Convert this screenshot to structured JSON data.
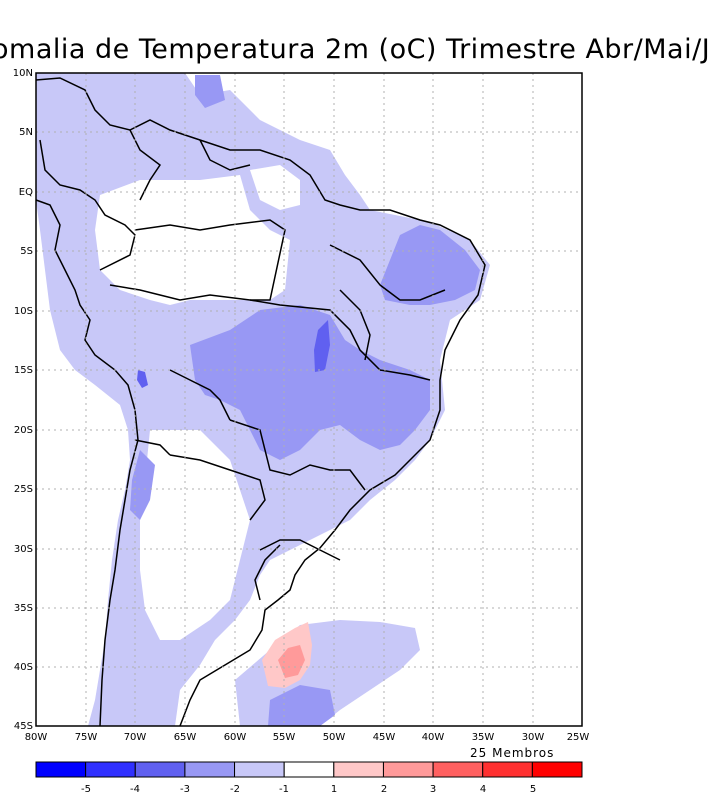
{
  "title": "omalia de Temperatura 2m (oC) Trimestre Abr/Mai/J",
  "members": "25 Membros",
  "lat_labels": [
    "10N",
    "5N",
    "EQ",
    "5S",
    "10S",
    "15S",
    "20S",
    "25S",
    "30S",
    "35S",
    "40S",
    "45S"
  ],
  "lon_labels": [
    "80W",
    "75W",
    "70W",
    "65W",
    "60W",
    "55W",
    "50W",
    "45W",
    "40W",
    "35W",
    "30W",
    "25W"
  ],
  "colorbar": {
    "labels": [
      "-5",
      "-4",
      "-3",
      "-2",
      "-1",
      "1",
      "2",
      "3",
      "4",
      "5"
    ],
    "colors": [
      "#0000ff",
      "#3030ff",
      "#6060f0",
      "#9898f4",
      "#c8c8f8",
      "#ffffff",
      "#ffc8c8",
      "#ff9a9a",
      "#ff6060",
      "#ff3030",
      "#ff0000"
    ]
  },
  "legend_colors": {
    "anom_m1": "#c8c8f8",
    "anom_m2": "#9898f4",
    "anom_m3": "#6060f0",
    "anom_p1": "#ffc8c8",
    "anom_p2": "#ff9a9a"
  }
}
